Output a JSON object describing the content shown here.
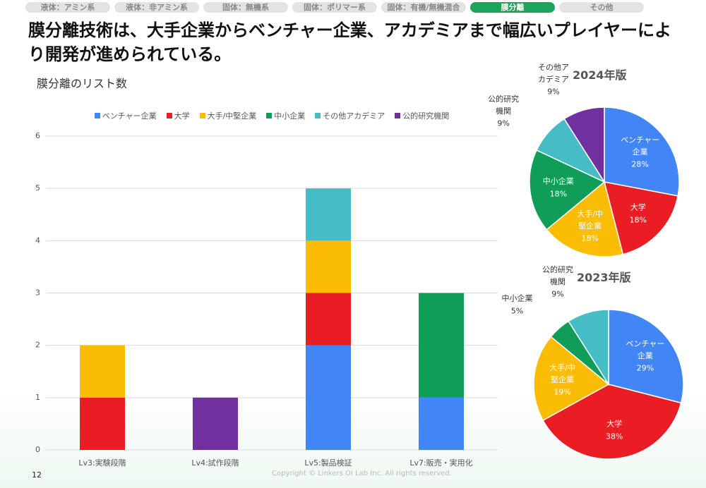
{
  "tabs": [
    "液体：アミン系",
    "液体：非アミン系",
    "固体：無機系",
    "固体：ポリマー系",
    "固体：有機/無機混合",
    "膜分離",
    "その他"
  ],
  "active_tab": "膜分離",
  "title": "膜分離技術は、大手企業からベンチャー企業、アカデミアまで幅広いプレイヤーにより開発が進められている。",
  "page_number": "12",
  "copyright": "Copyright © Linkers OI Lab Inc. All rights reserved.",
  "chart_data": [
    {
      "type": "stacked_bar",
      "title": "膜分離のリスト数",
      "categories": [
        "Lv3:実験段階",
        "Lv4:試作段階",
        "Lv5:製品検証",
        "Lv7:販売・実用化"
      ],
      "series": [
        {
          "name": "ベンチャー企業",
          "color": "#4285f4",
          "values": [
            0,
            0,
            2,
            1
          ]
        },
        {
          "name": "大学",
          "color": "#ea1c24",
          "values": [
            1,
            0,
            1,
            0
          ]
        },
        {
          "name": "大手/中堅企業",
          "color": "#fbbc04",
          "values": [
            1,
            0,
            1,
            0
          ]
        },
        {
          "name": "中小企業",
          "color": "#0f9d58",
          "values": [
            0,
            0,
            0,
            2
          ]
        },
        {
          "name": "その他アカデミア",
          "color": "#46bdc6",
          "values": [
            0,
            0,
            1,
            0
          ]
        },
        {
          "name": "公的研究機関",
          "color": "#7030a0",
          "values": [
            0,
            1,
            0,
            0
          ]
        }
      ],
      "ylim": [
        0,
        6
      ],
      "yticks": [
        0,
        1,
        2,
        3,
        4,
        5,
        6
      ],
      "grid": true,
      "legend": "top"
    },
    {
      "type": "pie",
      "title": "2024年版",
      "categories": [
        "ベンチャー\n企業",
        "大学",
        "大手/中\n堅企業",
        "中小企業",
        "公的研究\n機関",
        "その他ア\nカデミア"
      ],
      "values": [
        28,
        18,
        18,
        18,
        9,
        9
      ],
      "value_labels": [
        "28%",
        "18%",
        "18%",
        "18%",
        "9%",
        "9%"
      ],
      "colors": [
        "#4285f4",
        "#ea1c24",
        "#fbbc04",
        "#0f9d58",
        "#46bdc6",
        "#7030a0"
      ]
    },
    {
      "type": "pie",
      "title": "2023年版",
      "categories": [
        "ベンチャー\n企業",
        "大学",
        "大手/中\n堅企業",
        "中小企業",
        "公的研究\n機関"
      ],
      "values": [
        29,
        38,
        19,
        5,
        9
      ],
      "value_labels": [
        "29%",
        "38%",
        "19%",
        "5%",
        "9%"
      ],
      "colors": [
        "#4285f4",
        "#ea1c24",
        "#fbbc04",
        "#0f9d58",
        "#46bdc6"
      ]
    }
  ]
}
